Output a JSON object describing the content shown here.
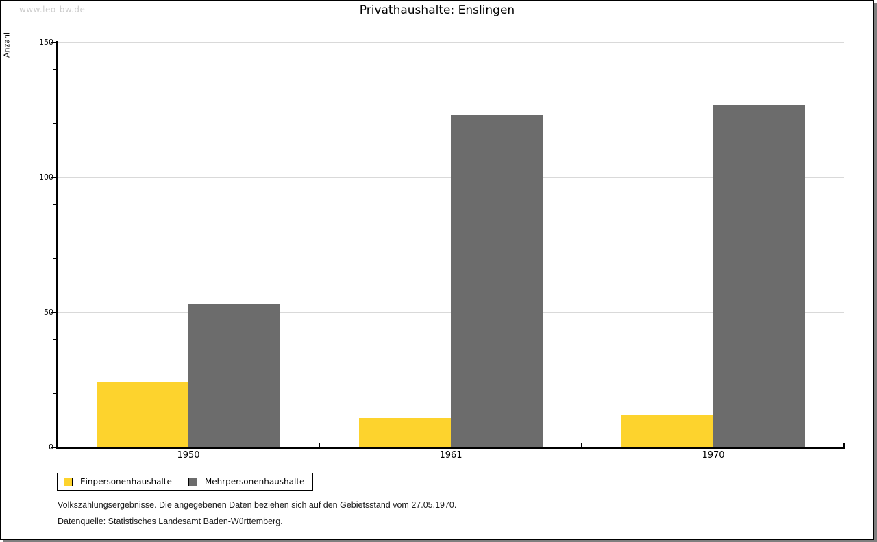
{
  "watermark": "www.leo-bw.de",
  "title": "Privathaushalte: Enslingen",
  "chart_data": {
    "type": "bar",
    "title": "Privathaushalte: Enslingen",
    "xlabel": "",
    "ylabel": "Anzahl",
    "categories": [
      "1950",
      "1961",
      "1970"
    ],
    "series": [
      {
        "name": "Einpersonenhaushalte",
        "color": "#fdd32d",
        "values": [
          24,
          11,
          12
        ]
      },
      {
        "name": "Mehrpersonenhaushalte",
        "color": "#6c6c6c",
        "values": [
          53,
          123,
          127
        ]
      }
    ],
    "ylim": [
      0,
      150
    ],
    "yticks": [
      0,
      50,
      100,
      150
    ],
    "minor_tick_step": 10,
    "grid": "horizontal-major-gridlines",
    "legend_position": "bottom-left"
  },
  "footer": {
    "line1": "Volkszählungsergebnisse. Die angegebenen Daten beziehen sich auf den Gebietsstand vom 27.05.1970.",
    "line2": "Datenquelle: Statistisches Landesamt Baden-Württemberg."
  },
  "colors": {
    "series_1": "#fdd32d",
    "series_2": "#6c6c6c",
    "gridline": "#d9d9d9",
    "axis": "#000000",
    "watermark": "#cccccc",
    "window_shadow": "#7f7f7f"
  }
}
